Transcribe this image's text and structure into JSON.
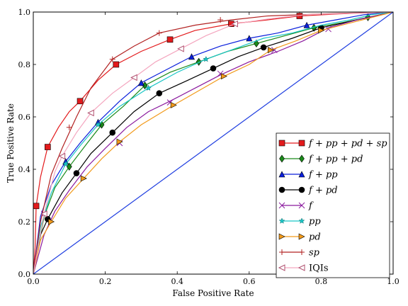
{
  "chart_data": {
    "type": "line",
    "title": "",
    "xlabel": "False Positive Rate",
    "ylabel": "True Positive Rate",
    "xlim": [
      0,
      1
    ],
    "ylim": [
      0,
      1
    ],
    "xticks": [
      "0.0",
      "0.2",
      "0.4",
      "0.6",
      "0.8",
      "1.0"
    ],
    "yticks": [
      "0.0",
      "0.2",
      "0.4",
      "0.6",
      "0.8",
      "1.0"
    ],
    "grid": false,
    "legend_position": "lower-right",
    "series": [
      {
        "name": "f + pp + pd + sp",
        "color": "#e31a1c",
        "marker": "square",
        "points": [
          [
            0,
            0
          ],
          [
            0.005,
            0.1
          ],
          [
            0.008,
            0.26
          ],
          [
            0.02,
            0.37
          ],
          [
            0.04,
            0.485
          ],
          [
            0.07,
            0.56
          ],
          [
            0.1,
            0.62
          ],
          [
            0.13,
            0.66
          ],
          [
            0.18,
            0.74
          ],
          [
            0.23,
            0.8
          ],
          [
            0.3,
            0.85
          ],
          [
            0.38,
            0.895
          ],
          [
            0.45,
            0.93
          ],
          [
            0.55,
            0.955
          ],
          [
            0.65,
            0.97
          ],
          [
            0.74,
            0.985
          ],
          [
            0.85,
            0.993
          ],
          [
            1,
            1
          ]
        ],
        "markers": [
          [
            0.008,
            0.26
          ],
          [
            0.04,
            0.485
          ],
          [
            0.13,
            0.66
          ],
          [
            0.23,
            0.8
          ],
          [
            0.38,
            0.895
          ],
          [
            0.55,
            0.955
          ],
          [
            0.74,
            0.985
          ]
        ]
      },
      {
        "name": "f + pp + pd",
        "color": "#1a8a1a",
        "marker": "diamond",
        "points": [
          [
            0,
            0
          ],
          [
            0.03,
            0.22
          ],
          [
            0.06,
            0.33
          ],
          [
            0.1,
            0.41
          ],
          [
            0.15,
            0.5
          ],
          [
            0.19,
            0.57
          ],
          [
            0.25,
            0.64
          ],
          [
            0.31,
            0.72
          ],
          [
            0.38,
            0.77
          ],
          [
            0.46,
            0.81
          ],
          [
            0.54,
            0.85
          ],
          [
            0.62,
            0.88
          ],
          [
            0.7,
            0.91
          ],
          [
            0.78,
            0.94
          ],
          [
            0.86,
            0.96
          ],
          [
            0.93,
            0.98
          ],
          [
            1,
            1
          ]
        ],
        "markers": [
          [
            0.1,
            0.41
          ],
          [
            0.19,
            0.57
          ],
          [
            0.31,
            0.72
          ],
          [
            0.46,
            0.81
          ],
          [
            0.62,
            0.88
          ],
          [
            0.78,
            0.94
          ],
          [
            0.93,
            0.98
          ]
        ]
      },
      {
        "name": "f + pp",
        "color": "#0a1fdc",
        "marker": "triangle-up",
        "points": [
          [
            0,
            0
          ],
          [
            0.02,
            0.22
          ],
          [
            0.05,
            0.34
          ],
          [
            0.09,
            0.43
          ],
          [
            0.13,
            0.5
          ],
          [
            0.18,
            0.58
          ],
          [
            0.24,
            0.66
          ],
          [
            0.3,
            0.73
          ],
          [
            0.37,
            0.78
          ],
          [
            0.44,
            0.83
          ],
          [
            0.52,
            0.87
          ],
          [
            0.6,
            0.9
          ],
          [
            0.68,
            0.92
          ],
          [
            0.76,
            0.95
          ],
          [
            0.84,
            0.97
          ],
          [
            0.92,
            0.99
          ],
          [
            1,
            1
          ]
        ],
        "markers": [
          [
            0.09,
            0.43
          ],
          [
            0.18,
            0.58
          ],
          [
            0.3,
            0.73
          ],
          [
            0.44,
            0.83
          ],
          [
            0.6,
            0.9
          ],
          [
            0.76,
            0.95
          ]
        ]
      },
      {
        "name": "f + pd",
        "color": "#000000",
        "marker": "circle",
        "points": [
          [
            0,
            0
          ],
          [
            0.02,
            0.15
          ],
          [
            0.04,
            0.21
          ],
          [
            0.08,
            0.31
          ],
          [
            0.12,
            0.385
          ],
          [
            0.16,
            0.46
          ],
          [
            0.22,
            0.54
          ],
          [
            0.28,
            0.62
          ],
          [
            0.35,
            0.69
          ],
          [
            0.43,
            0.74
          ],
          [
            0.5,
            0.785
          ],
          [
            0.57,
            0.83
          ],
          [
            0.64,
            0.865
          ],
          [
            0.72,
            0.9
          ],
          [
            0.8,
            0.94
          ],
          [
            0.9,
            0.97
          ],
          [
            1,
            1
          ]
        ],
        "markers": [
          [
            0.04,
            0.21
          ],
          [
            0.12,
            0.385
          ],
          [
            0.22,
            0.54
          ],
          [
            0.35,
            0.69
          ],
          [
            0.5,
            0.785
          ],
          [
            0.64,
            0.865
          ],
          [
            0.8,
            0.94
          ]
        ]
      },
      {
        "name": "f",
        "color": "#8b1a9e",
        "marker": "x",
        "points": [
          [
            0,
            0
          ],
          [
            0.03,
            0.15
          ],
          [
            0.06,
            0.24
          ],
          [
            0.1,
            0.32
          ],
          [
            0.15,
            0.41
          ],
          [
            0.2,
            0.48
          ],
          [
            0.26,
            0.56
          ],
          [
            0.32,
            0.62
          ],
          [
            0.38,
            0.66
          ],
          [
            0.45,
            0.71
          ],
          [
            0.52,
            0.76
          ],
          [
            0.6,
            0.81
          ],
          [
            0.68,
            0.85
          ],
          [
            0.75,
            0.89
          ],
          [
            0.82,
            0.94
          ],
          [
            0.9,
            0.97
          ],
          [
            1,
            1
          ]
        ],
        "markers": [
          [
            0.03,
            0.23
          ],
          [
            0.24,
            0.5
          ],
          [
            0.38,
            0.655
          ],
          [
            0.52,
            0.765
          ],
          [
            0.67,
            0.855
          ],
          [
            0.82,
            0.935
          ]
        ]
      },
      {
        "name": "pp",
        "color": "#1ac6c6",
        "marker": "star",
        "points": [
          [
            0,
            0
          ],
          [
            0.02,
            0.18
          ],
          [
            0.05,
            0.31
          ],
          [
            0.09,
            0.42
          ],
          [
            0.13,
            0.49
          ],
          [
            0.18,
            0.57
          ],
          [
            0.24,
            0.64
          ],
          [
            0.32,
            0.71
          ],
          [
            0.4,
            0.77
          ],
          [
            0.48,
            0.82
          ],
          [
            0.56,
            0.86
          ],
          [
            0.64,
            0.9
          ],
          [
            0.72,
            0.92
          ],
          [
            0.8,
            0.95
          ],
          [
            0.88,
            0.97
          ],
          [
            0.94,
            0.99
          ],
          [
            1,
            1
          ]
        ],
        "markers": [
          [
            0.09,
            0.42
          ],
          [
            0.18,
            0.57
          ],
          [
            0.32,
            0.71
          ],
          [
            0.48,
            0.82
          ]
        ]
      },
      {
        "name": "pd",
        "color": "#f29a1a",
        "marker": "triangle-right",
        "points": [
          [
            0,
            0
          ],
          [
            0.02,
            0.13
          ],
          [
            0.05,
            0.2
          ],
          [
            0.09,
            0.29
          ],
          [
            0.14,
            0.365
          ],
          [
            0.19,
            0.44
          ],
          [
            0.24,
            0.505
          ],
          [
            0.3,
            0.57
          ],
          [
            0.39,
            0.645
          ],
          [
            0.46,
            0.7
          ],
          [
            0.53,
            0.755
          ],
          [
            0.6,
            0.8
          ],
          [
            0.66,
            0.855
          ],
          [
            0.73,
            0.89
          ],
          [
            0.8,
            0.93
          ],
          [
            0.9,
            0.965
          ],
          [
            1,
            1
          ]
        ],
        "markers": [
          [
            0.05,
            0.2
          ],
          [
            0.14,
            0.365
          ],
          [
            0.24,
            0.505
          ],
          [
            0.39,
            0.645
          ],
          [
            0.53,
            0.755
          ],
          [
            0.66,
            0.855
          ],
          [
            0.8,
            0.93
          ]
        ]
      },
      {
        "name": "sp",
        "color": "#b22222",
        "marker": "plus",
        "points": [
          [
            0,
            0
          ],
          [
            0.02,
            0.2
          ],
          [
            0.05,
            0.38
          ],
          [
            0.08,
            0.48
          ],
          [
            0.12,
            0.6
          ],
          [
            0.16,
            0.71
          ],
          [
            0.22,
            0.82
          ],
          [
            0.28,
            0.87
          ],
          [
            0.35,
            0.92
          ],
          [
            0.45,
            0.95
          ],
          [
            0.55,
            0.97
          ],
          [
            0.65,
            0.985
          ],
          [
            0.75,
            0.99
          ],
          [
            0.85,
            0.995
          ],
          [
            1,
            1
          ]
        ],
        "markers": [
          [
            0.1,
            0.56
          ],
          [
            0.22,
            0.82
          ],
          [
            0.35,
            0.92
          ],
          [
            0.52,
            0.97
          ],
          [
            0.74,
            0.99
          ]
        ]
      },
      {
        "name": "IQIs",
        "color": "#f4a6bf",
        "marker": "triangle-left",
        "points": [
          [
            0,
            0
          ],
          [
            0.03,
            0.23
          ],
          [
            0.06,
            0.39
          ],
          [
            0.08,
            0.45
          ],
          [
            0.12,
            0.54
          ],
          [
            0.16,
            0.615
          ],
          [
            0.22,
            0.69
          ],
          [
            0.28,
            0.75
          ],
          [
            0.34,
            0.81
          ],
          [
            0.41,
            0.86
          ],
          [
            0.48,
            0.91
          ],
          [
            0.56,
            0.955
          ],
          [
            0.66,
            0.975
          ],
          [
            0.76,
            0.99
          ],
          [
            0.88,
            0.995
          ],
          [
            1,
            1
          ]
        ],
        "markers": [
          [
            0.03,
            0.23
          ],
          [
            0.08,
            0.45
          ],
          [
            0.16,
            0.615
          ],
          [
            0.28,
            0.75
          ],
          [
            0.41,
            0.86
          ],
          [
            0.56,
            0.955
          ]
        ]
      },
      {
        "name": "",
        "color": "#1f3ee0",
        "marker": "none",
        "points": [
          [
            0,
            0
          ],
          [
            1,
            1
          ]
        ],
        "markers": []
      }
    ]
  }
}
